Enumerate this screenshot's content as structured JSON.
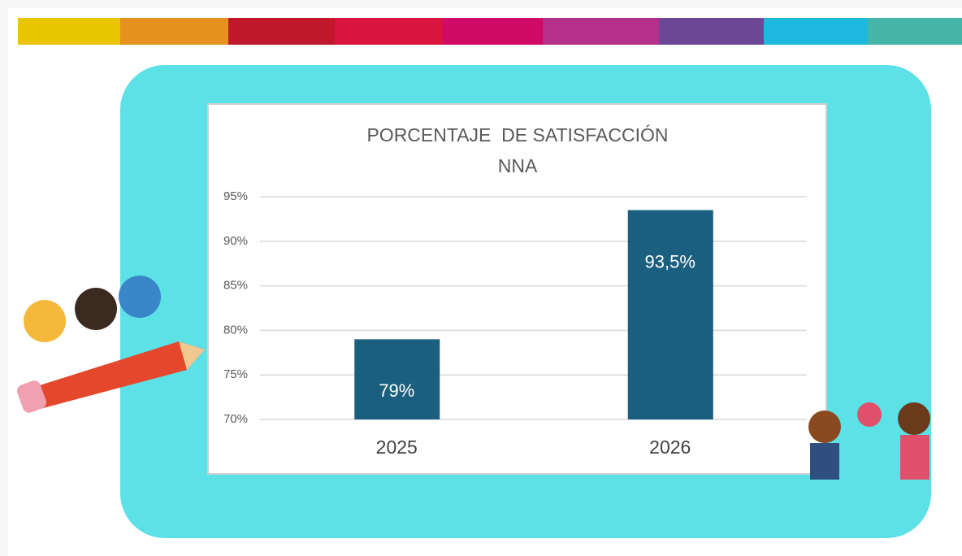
{
  "chart_data": {
    "type": "bar",
    "title": "PORCENTAJE  DE SATISFACCIÓN NNA",
    "categories": [
      "2025",
      "2026"
    ],
    "values": [
      79,
      93.5
    ],
    "value_labels": [
      "79%",
      "93,5%"
    ],
    "color": "#1a5e80",
    "ylim": [
      70,
      95
    ],
    "yticks": [
      {
        "value": 70,
        "label": "70%"
      },
      {
        "value": 75,
        "label": "75%"
      },
      {
        "value": 80,
        "label": "80%"
      },
      {
        "value": 85,
        "label": "85%"
      },
      {
        "value": 90,
        "label": "90%"
      },
      {
        "value": 95,
        "label": "95%"
      }
    ],
    "grid": true
  }
}
